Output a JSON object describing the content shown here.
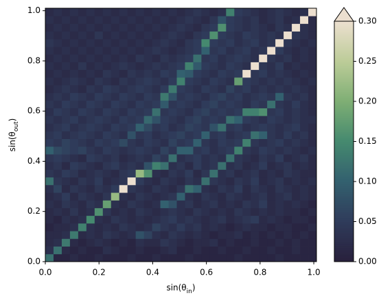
{
  "chart_data": {
    "type": "heatmap",
    "xlabel": [
      "sin(θ",
      "in",
      ")"
    ],
    "ylabel": [
      "sin(θ",
      "out",
      ")"
    ],
    "xlim": [
      0,
      1.01
    ],
    "ylim": [
      0,
      1.01
    ],
    "xticks": [
      {
        "value": 0,
        "label": "0.0"
      },
      {
        "value": 0.2,
        "label": "0.2"
      },
      {
        "value": 0.4,
        "label": "0.4"
      },
      {
        "value": 0.6,
        "label": "0.6"
      },
      {
        "value": 0.8,
        "label": "0.8"
      },
      {
        "value": 1,
        "label": "1.0"
      }
    ],
    "yticks": [
      {
        "value": 0,
        "label": "0.0"
      },
      {
        "value": 0.2,
        "label": "0.2"
      },
      {
        "value": 0.4,
        "label": "0.4"
      },
      {
        "value": 0.6,
        "label": "0.6"
      },
      {
        "value": 0.8,
        "label": "0.8"
      },
      {
        "value": 1,
        "label": "1.0"
      }
    ],
    "colorbar": {
      "lim": [
        0,
        0.3
      ],
      "extend": "max",
      "ticks": [
        {
          "value": 0,
          "label": "0.00"
        },
        {
          "value": 0.05,
          "label": "0.05"
        },
        {
          "value": 0.1,
          "label": "0.10"
        },
        {
          "value": 0.15,
          "label": "0.15"
        },
        {
          "value": 0.2,
          "label": "0.20"
        },
        {
          "value": 0.25,
          "label": "0.25"
        },
        {
          "value": 0.3,
          "label": "0.30"
        }
      ]
    },
    "colormap": [
      "#28203c",
      "#2f3b5a",
      "#33606f",
      "#45896f",
      "#7eae74",
      "#bccc98",
      "#ecdfcf"
    ],
    "values": [
      [
        0.12,
        0.01,
        0.01,
        0.02,
        0.01,
        0.01,
        0.02,
        0.01,
        0.01,
        0.01,
        0.02,
        0.01,
        0.01,
        0.02,
        0.01,
        0.01,
        0.01,
        0.02,
        0.01,
        0.01,
        0.01,
        0.01,
        0.01,
        0.02,
        0.01,
        0.01,
        0.01,
        0.01,
        0.02,
        0.01,
        0.01,
        0.01,
        0.01
      ],
      [
        0.03,
        0.12,
        0.02,
        0.01,
        0.02,
        0.01,
        0.01,
        0.03,
        0.02,
        0.01,
        0.01,
        0.02,
        0.01,
        0.01,
        0.02,
        0.03,
        0.01,
        0.01,
        0.02,
        0.01,
        0.01,
        0.02,
        0.01,
        0.01,
        0.02,
        0.01,
        0.01,
        0.02,
        0.01,
        0.01,
        0.02,
        0.01,
        0.01
      ],
      [
        0.02,
        0.03,
        0.13,
        0.02,
        0.01,
        0.02,
        0.03,
        0.02,
        0.01,
        0.02,
        0.01,
        0.03,
        0.02,
        0.02,
        0.04,
        0.03,
        0.02,
        0.01,
        0.02,
        0.02,
        0.03,
        0.01,
        0.02,
        0.01,
        0.01,
        0.02,
        0.01,
        0.01,
        0.02,
        0.01,
        0.02,
        0.01,
        0.01
      ],
      [
        0.02,
        0.02,
        0.03,
        0.13,
        0.02,
        0.03,
        0.02,
        0.04,
        0.03,
        0.02,
        0.03,
        0.08,
        0.06,
        0.03,
        0.02,
        0.04,
        0.03,
        0.02,
        0.03,
        0.02,
        0.01,
        0.02,
        0.02,
        0.03,
        0.01,
        0.02,
        0.01,
        0.02,
        0.01,
        0.02,
        0.01,
        0.02,
        0.01
      ],
      [
        0.01,
        0.02,
        0.02,
        0.03,
        0.14,
        0.03,
        0.02,
        0.03,
        0.02,
        0.04,
        0.03,
        0.02,
        0.03,
        0.06,
        0.04,
        0.03,
        0.05,
        0.03,
        0.04,
        0.02,
        0.03,
        0.02,
        0.01,
        0.02,
        0.03,
        0.02,
        0.02,
        0.01,
        0.02,
        0.02,
        0.01,
        0.01,
        0.02
      ],
      [
        0.02,
        0.01,
        0.03,
        0.02,
        0.03,
        0.15,
        0.03,
        0.02,
        0.04,
        0.03,
        0.02,
        0.03,
        0.02,
        0.03,
        0.04,
        0.05,
        0.03,
        0.04,
        0.03,
        0.02,
        0.03,
        0.04,
        0.02,
        0.03,
        0.04,
        0.05,
        0.02,
        0.03,
        0.02,
        0.01,
        0.02,
        0.02,
        0.01
      ],
      [
        0.02,
        0.03,
        0.02,
        0.04,
        0.02,
        0.03,
        0.16,
        0.04,
        0.02,
        0.03,
        0.02,
        0.04,
        0.03,
        0.02,
        0.03,
        0.04,
        0.03,
        0.02,
        0.04,
        0.03,
        0.02,
        0.03,
        0.02,
        0.04,
        0.03,
        0.02,
        0.03,
        0.02,
        0.03,
        0.02,
        0.02,
        0.01,
        0.02
      ],
      [
        0.03,
        0.02,
        0.04,
        0.03,
        0.02,
        0.04,
        0.03,
        0.18,
        0.03,
        0.02,
        0.04,
        0.03,
        0.02,
        0.03,
        0.1,
        0.08,
        0.03,
        0.04,
        0.02,
        0.03,
        0.04,
        0.02,
        0.03,
        0.02,
        0.04,
        0.03,
        0.05,
        0.02,
        0.03,
        0.02,
        0.03,
        0.02,
        0.01
      ],
      [
        0.02,
        0.03,
        0.05,
        0.02,
        0.04,
        0.03,
        0.02,
        0.04,
        0.22,
        0.03,
        0.02,
        0.04,
        0.03,
        0.02,
        0.03,
        0.04,
        0.1,
        0.03,
        0.02,
        0.04,
        0.03,
        0.02,
        0.04,
        0.03,
        0.02,
        0.03,
        0.04,
        0.02,
        0.03,
        0.04,
        0.02,
        0.03,
        0.02
      ],
      [
        0.03,
        0.06,
        0.02,
        0.04,
        0.03,
        0.02,
        0.04,
        0.03,
        0.05,
        0.3,
        0.04,
        0.03,
        0.02,
        0.04,
        0.03,
        0.02,
        0.04,
        0.12,
        0.1,
        0.03,
        0.02,
        0.04,
        0.03,
        0.05,
        0.02,
        0.04,
        0.03,
        0.02,
        0.04,
        0.03,
        0.02,
        0.03,
        0.02
      ],
      [
        0.12,
        0.04,
        0.03,
        0.02,
        0.04,
        0.03,
        0.05,
        0.02,
        0.03,
        0.04,
        0.3,
        0.05,
        0.03,
        0.02,
        0.04,
        0.03,
        0.02,
        0.04,
        0.03,
        0.12,
        0.04,
        0.03,
        0.02,
        0.04,
        0.03,
        0.05,
        0.02,
        0.03,
        0.04,
        0.02,
        0.03,
        0.02,
        0.03
      ],
      [
        0.04,
        0.03,
        0.05,
        0.04,
        0.02,
        0.03,
        0.04,
        0.03,
        0.02,
        0.04,
        0.05,
        0.22,
        0.16,
        0.03,
        0.02,
        0.04,
        0.03,
        0.05,
        0.02,
        0.04,
        0.12,
        0.03,
        0.04,
        0.02,
        0.03,
        0.04,
        0.02,
        0.03,
        0.02,
        0.04,
        0.03,
        0.02,
        0.02
      ],
      [
        0.03,
        0.04,
        0.02,
        0.05,
        0.04,
        0.03,
        0.02,
        0.04,
        0.05,
        0.03,
        0.04,
        0.03,
        0.08,
        0.14,
        0.12,
        0.03,
        0.04,
        0.02,
        0.05,
        0.03,
        0.04,
        0.12,
        0.03,
        0.04,
        0.02,
        0.03,
        0.05,
        0.02,
        0.03,
        0.04,
        0.02,
        0.03,
        0.02
      ],
      [
        0.04,
        0.05,
        0.04,
        0.03,
        0.02,
        0.05,
        0.04,
        0.03,
        0.04,
        0.02,
        0.03,
        0.04,
        0.03,
        0.06,
        0.04,
        0.12,
        0.03,
        0.04,
        0.05,
        0.03,
        0.04,
        0.03,
        0.12,
        0.04,
        0.03,
        0.02,
        0.04,
        0.03,
        0.05,
        0.02,
        0.03,
        0.04,
        0.02
      ],
      [
        0.1,
        0.07,
        0.06,
        0.05,
        0.06,
        0.04,
        0.03,
        0.05,
        0.04,
        0.03,
        0.04,
        0.05,
        0.04,
        0.03,
        0.06,
        0.04,
        0.1,
        0.1,
        0.04,
        0.05,
        0.03,
        0.04,
        0.05,
        0.14,
        0.04,
        0.03,
        0.05,
        0.04,
        0.03,
        0.04,
        0.03,
        0.02,
        0.03
      ],
      [
        0.05,
        0.04,
        0.06,
        0.05,
        0.04,
        0.03,
        0.05,
        0.04,
        0.05,
        0.07,
        0.04,
        0.03,
        0.05,
        0.04,
        0.03,
        0.06,
        0.04,
        0.05,
        0.1,
        0.04,
        0.03,
        0.05,
        0.04,
        0.05,
        0.14,
        0.04,
        0.03,
        0.04,
        0.05,
        0.03,
        0.04,
        0.03,
        0.02
      ],
      [
        0.04,
        0.05,
        0.03,
        0.04,
        0.05,
        0.04,
        0.03,
        0.05,
        0.04,
        0.03,
        0.08,
        0.04,
        0.05,
        0.03,
        0.04,
        0.05,
        0.06,
        0.04,
        0.05,
        0.1,
        0.04,
        0.05,
        0.03,
        0.04,
        0.05,
        0.12,
        0.1,
        0.04,
        0.03,
        0.05,
        0.03,
        0.04,
        0.02
      ],
      [
        0.03,
        0.04,
        0.05,
        0.03,
        0.04,
        0.05,
        0.04,
        0.03,
        0.05,
        0.04,
        0.05,
        0.1,
        0.07,
        0.04,
        0.05,
        0.03,
        0.04,
        0.06,
        0.05,
        0.04,
        0.08,
        0.12,
        0.04,
        0.05,
        0.03,
        0.04,
        0.05,
        0.04,
        0.03,
        0.04,
        0.05,
        0.03,
        0.02
      ],
      [
        0.04,
        0.03,
        0.04,
        0.05,
        0.03,
        0.04,
        0.05,
        0.04,
        0.03,
        0.05,
        0.04,
        0.05,
        0.11,
        0.08,
        0.05,
        0.04,
        0.03,
        0.05,
        0.06,
        0.04,
        0.05,
        0.04,
        0.12,
        0.1,
        0.05,
        0.04,
        0.03,
        0.05,
        0.04,
        0.03,
        0.04,
        0.03,
        0.03
      ],
      [
        0.03,
        0.05,
        0.04,
        0.03,
        0.05,
        0.04,
        0.03,
        0.05,
        0.04,
        0.03,
        0.05,
        0.04,
        0.05,
        0.12,
        0.04,
        0.05,
        0.04,
        0.03,
        0.05,
        0.06,
        0.04,
        0.05,
        0.04,
        0.05,
        0.14,
        0.14,
        0.16,
        0.04,
        0.05,
        0.03,
        0.04,
        0.03,
        0.02
      ],
      [
        0.04,
        0.03,
        0.05,
        0.04,
        0.03,
        0.05,
        0.04,
        0.03,
        0.05,
        0.04,
        0.03,
        0.05,
        0.04,
        0.05,
        0.09,
        0.04,
        0.05,
        0.04,
        0.03,
        0.05,
        0.06,
        0.04,
        0.05,
        0.04,
        0.03,
        0.05,
        0.04,
        0.12,
        0.04,
        0.03,
        0.05,
        0.03,
        0.02
      ],
      [
        0.03,
        0.04,
        0.03,
        0.05,
        0.04,
        0.03,
        0.05,
        0.04,
        0.03,
        0.05,
        0.04,
        0.03,
        0.05,
        0.04,
        0.13,
        0.08,
        0.04,
        0.05,
        0.04,
        0.03,
        0.05,
        0.06,
        0.04,
        0.05,
        0.03,
        0.04,
        0.05,
        0.04,
        0.1,
        0.04,
        0.03,
        0.04,
        0.02
      ],
      [
        0.02,
        0.03,
        0.04,
        0.03,
        0.02,
        0.04,
        0.03,
        0.05,
        0.04,
        0.03,
        0.04,
        0.05,
        0.04,
        0.03,
        0.05,
        0.13,
        0.05,
        0.04,
        0.03,
        0.05,
        0.04,
        0.03,
        0.06,
        0.04,
        0.05,
        0.03,
        0.04,
        0.03,
        0.04,
        0.03,
        0.04,
        0.03,
        0.02
      ],
      [
        0.03,
        0.02,
        0.03,
        0.04,
        0.03,
        0.02,
        0.04,
        0.03,
        0.02,
        0.04,
        0.03,
        0.04,
        0.05,
        0.04,
        0.03,
        0.05,
        0.14,
        0.05,
        0.04,
        0.03,
        0.05,
        0.04,
        0.03,
        0.18,
        0.05,
        0.04,
        0.03,
        0.04,
        0.03,
        0.04,
        0.03,
        0.02,
        0.03
      ],
      [
        0.02,
        0.03,
        0.02,
        0.03,
        0.02,
        0.03,
        0.02,
        0.04,
        0.03,
        0.02,
        0.04,
        0.03,
        0.04,
        0.03,
        0.05,
        0.04,
        0.1,
        0.09,
        0.05,
        0.04,
        0.03,
        0.05,
        0.04,
        0.05,
        0.3,
        0.04,
        0.05,
        0.03,
        0.04,
        0.03,
        0.02,
        0.03,
        0.02
      ],
      [
        0.03,
        0.02,
        0.03,
        0.02,
        0.04,
        0.02,
        0.03,
        0.02,
        0.03,
        0.04,
        0.03,
        0.02,
        0.03,
        0.04,
        0.03,
        0.04,
        0.05,
        0.14,
        0.09,
        0.05,
        0.04,
        0.03,
        0.05,
        0.04,
        0.03,
        0.3,
        0.04,
        0.03,
        0.05,
        0.02,
        0.03,
        0.02,
        0.02
      ],
      [
        0.02,
        0.03,
        0.02,
        0.03,
        0.02,
        0.03,
        0.02,
        0.03,
        0.02,
        0.03,
        0.02,
        0.04,
        0.03,
        0.02,
        0.04,
        0.03,
        0.04,
        0.05,
        0.12,
        0.04,
        0.05,
        0.03,
        0.04,
        0.05,
        0.04,
        0.03,
        0.3,
        0.04,
        0.03,
        0.04,
        0.02,
        0.03,
        0.02
      ],
      [
        0.03,
        0.02,
        0.03,
        0.02,
        0.03,
        0.02,
        0.03,
        0.02,
        0.03,
        0.02,
        0.03,
        0.02,
        0.03,
        0.04,
        0.03,
        0.02,
        0.03,
        0.04,
        0.05,
        0.1,
        0.04,
        0.05,
        0.03,
        0.04,
        0.05,
        0.03,
        0.04,
        0.3,
        0.05,
        0.03,
        0.02,
        0.03,
        0.02
      ],
      [
        0.04,
        0.03,
        0.02,
        0.03,
        0.02,
        0.03,
        0.02,
        0.03,
        0.02,
        0.03,
        0.02,
        0.03,
        0.02,
        0.03,
        0.04,
        0.03,
        0.02,
        0.04,
        0.05,
        0.15,
        0.05,
        0.04,
        0.05,
        0.03,
        0.04,
        0.05,
        0.03,
        0.04,
        0.3,
        0.04,
        0.03,
        0.02,
        0.03
      ],
      [
        0.03,
        0.02,
        0.03,
        0.02,
        0.03,
        0.02,
        0.04,
        0.02,
        0.03,
        0.02,
        0.03,
        0.02,
        0.03,
        0.02,
        0.03,
        0.04,
        0.03,
        0.02,
        0.04,
        0.05,
        0.16,
        0.05,
        0.04,
        0.03,
        0.05,
        0.04,
        0.03,
        0.04,
        0.03,
        0.3,
        0.04,
        0.03,
        0.02
      ],
      [
        0.02,
        0.03,
        0.02,
        0.03,
        0.02,
        0.03,
        0.02,
        0.03,
        0.02,
        0.03,
        0.02,
        0.03,
        0.02,
        0.03,
        0.02,
        0.03,
        0.04,
        0.03,
        0.02,
        0.04,
        0.05,
        0.16,
        0.05,
        0.04,
        0.03,
        0.04,
        0.03,
        0.02,
        0.04,
        0.03,
        0.3,
        0.03,
        0.02
      ],
      [
        0.03,
        0.02,
        0.03,
        0.02,
        0.03,
        0.02,
        0.03,
        0.02,
        0.03,
        0.02,
        0.03,
        0.02,
        0.03,
        0.02,
        0.03,
        0.02,
        0.03,
        0.04,
        0.03,
        0.02,
        0.04,
        0.08,
        0.05,
        0.04,
        0.03,
        0.04,
        0.02,
        0.03,
        0.04,
        0.02,
        0.03,
        0.3,
        0.02
      ],
      [
        0.02,
        0.03,
        0.02,
        0.03,
        0.02,
        0.03,
        0.02,
        0.03,
        0.02,
        0.03,
        0.02,
        0.03,
        0.02,
        0.03,
        0.02,
        0.03,
        0.02,
        0.03,
        0.04,
        0.03,
        0.02,
        0.03,
        0.14,
        0.05,
        0.04,
        0.03,
        0.02,
        0.03,
        0.04,
        0.03,
        0.02,
        0.03,
        0.3
      ]
    ]
  }
}
